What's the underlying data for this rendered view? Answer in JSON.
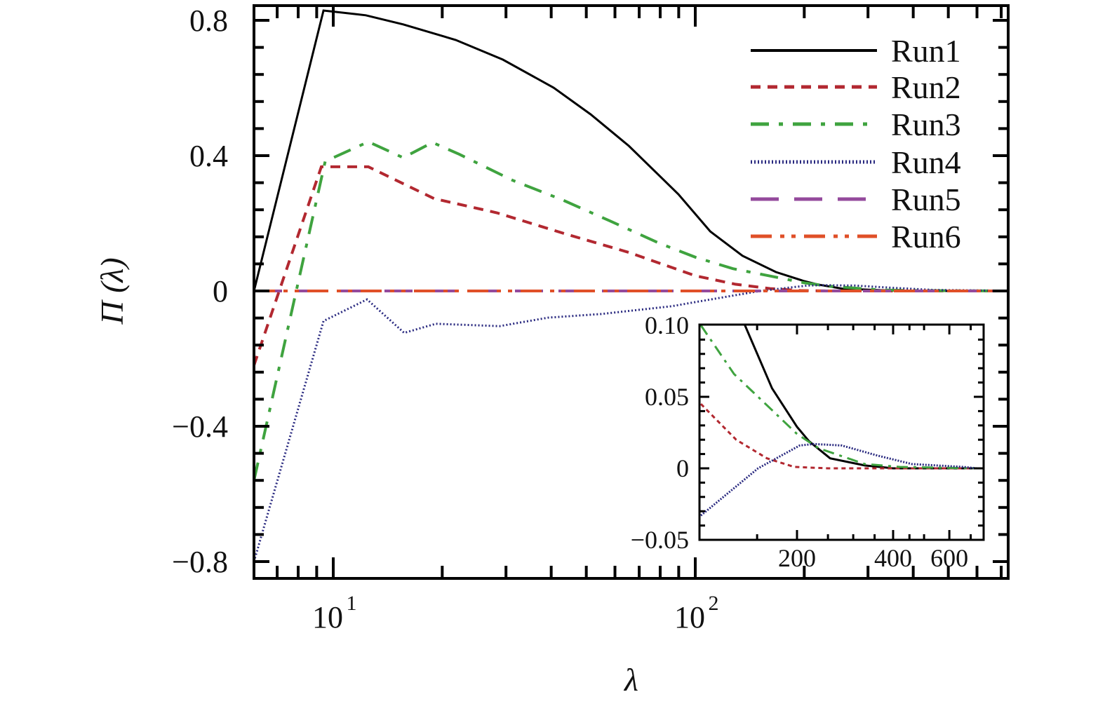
{
  "chart_data": [
    {
      "type": "line",
      "xlabel": "λ",
      "ylabel": "Π (λ)",
      "xscale": "log",
      "xlim": [
        6.04,
        731
      ],
      "ylim": [
        -0.85,
        0.85
      ],
      "x_tick_labels": [
        {
          "value": 10,
          "base": "10",
          "exp": "1"
        },
        {
          "value": 100,
          "base": "10",
          "exp": "2"
        }
      ],
      "y_ticks": [
        0.8,
        0.4,
        0,
        -0.4,
        -0.8
      ],
      "y_tick_labels": [
        "0.8",
        "0.4",
        "0",
        "−0.4",
        "−0.8"
      ],
      "grid": false,
      "legend": "top-right",
      "series": [
        {
          "name": "Run1",
          "color": "#000000",
          "style": "solid",
          "points": [
            [
              6.04,
              0
            ],
            [
              9.4,
              0.829
            ],
            [
              12.3,
              0.815
            ],
            [
              15.6,
              0.788
            ],
            [
              21.8,
              0.742
            ],
            [
              29.4,
              0.684
            ],
            [
              40.6,
              0.601
            ],
            [
              51.4,
              0.522
            ],
            [
              65.5,
              0.429
            ],
            [
              89.8,
              0.286
            ],
            [
              110,
              0.176
            ],
            [
              135,
              0.104
            ],
            [
              167,
              0.056
            ],
            [
              200,
              0.029
            ],
            [
              218,
              0.019
            ],
            [
              254,
              0.007
            ],
            [
              326,
              0.002
            ],
            [
              400,
              0
            ],
            [
              731,
              0
            ]
          ]
        },
        {
          "name": "Run2",
          "color": "#b22830",
          "style": "dash",
          "points": [
            [
              6.04,
              -0.22
            ],
            [
              9.27,
              0.367
            ],
            [
              12.5,
              0.367
            ],
            [
              19,
              0.273
            ],
            [
              28.3,
              0.231
            ],
            [
              43.7,
              0.169
            ],
            [
              65.5,
              0.114
            ],
            [
              100,
              0.045
            ],
            [
              129,
              0.02
            ],
            [
              161,
              0.007
            ],
            [
              196,
              0.001
            ],
            [
              250,
              0
            ],
            [
              731,
              0
            ]
          ]
        },
        {
          "name": "Run3",
          "color": "#3fa33f",
          "style": "dashdot",
          "points": [
            [
              6.04,
              -0.56
            ],
            [
              9.5,
              0.383
            ],
            [
              12.5,
              0.441
            ],
            [
              15.6,
              0.394
            ],
            [
              18.8,
              0.439
            ],
            [
              22.3,
              0.404
            ],
            [
              31.3,
              0.327
            ],
            [
              43,
              0.269
            ],
            [
              58.1,
              0.207
            ],
            [
              79.6,
              0.141
            ],
            [
              100,
              0.1
            ],
            [
              127,
              0.066
            ],
            [
              156,
              0.047
            ],
            [
              200,
              0.024
            ],
            [
              234,
              0.014
            ],
            [
              326,
              0.003
            ],
            [
              420,
              0.001
            ],
            [
              731,
              0
            ]
          ]
        },
        {
          "name": "Run4",
          "color": "#2a2a80",
          "style": "dot",
          "points": [
            [
              6.04,
              -0.8
            ],
            [
              9.4,
              -0.089
            ],
            [
              12.4,
              -0.025
            ],
            [
              15.7,
              -0.124
            ],
            [
              19.2,
              -0.097
            ],
            [
              28.8,
              -0.104
            ],
            [
              39.2,
              -0.079
            ],
            [
              55.2,
              -0.068
            ],
            [
              86.3,
              -0.045
            ],
            [
              100,
              -0.033
            ],
            [
              151,
              0
            ],
            [
              204,
              0.016
            ],
            [
              226,
              0.017
            ],
            [
              276,
              0.016
            ],
            [
              356,
              0.009
            ],
            [
              458,
              0.003
            ],
            [
              664,
              0.001
            ],
            [
              731,
              0
            ]
          ]
        },
        {
          "name": "Run5",
          "color": "#944a9c",
          "style": "longdash",
          "points": [
            [
              6.04,
              0
            ],
            [
              731,
              0
            ]
          ]
        },
        {
          "name": "Run6",
          "color": "#e05028",
          "style": "dashdotdot",
          "points": [
            [
              6.04,
              0
            ],
            [
              731,
              0
            ]
          ]
        }
      ]
    },
    {
      "type": "line",
      "role": "inset",
      "xscale": "log",
      "xlim": [
        100,
        770
      ],
      "ylim": [
        -0.05,
        0.1
      ],
      "x_ticks": [
        200,
        400,
        600
      ],
      "x_tick_labels": [
        "200",
        "400",
        "600"
      ],
      "y_ticks": [
        0.1,
        0.05,
        0,
        -0.05
      ],
      "y_tick_labels": [
        "0.10",
        "0.05",
        "0",
        "−0.05"
      ],
      "series_ref": "same as main series"
    }
  ]
}
